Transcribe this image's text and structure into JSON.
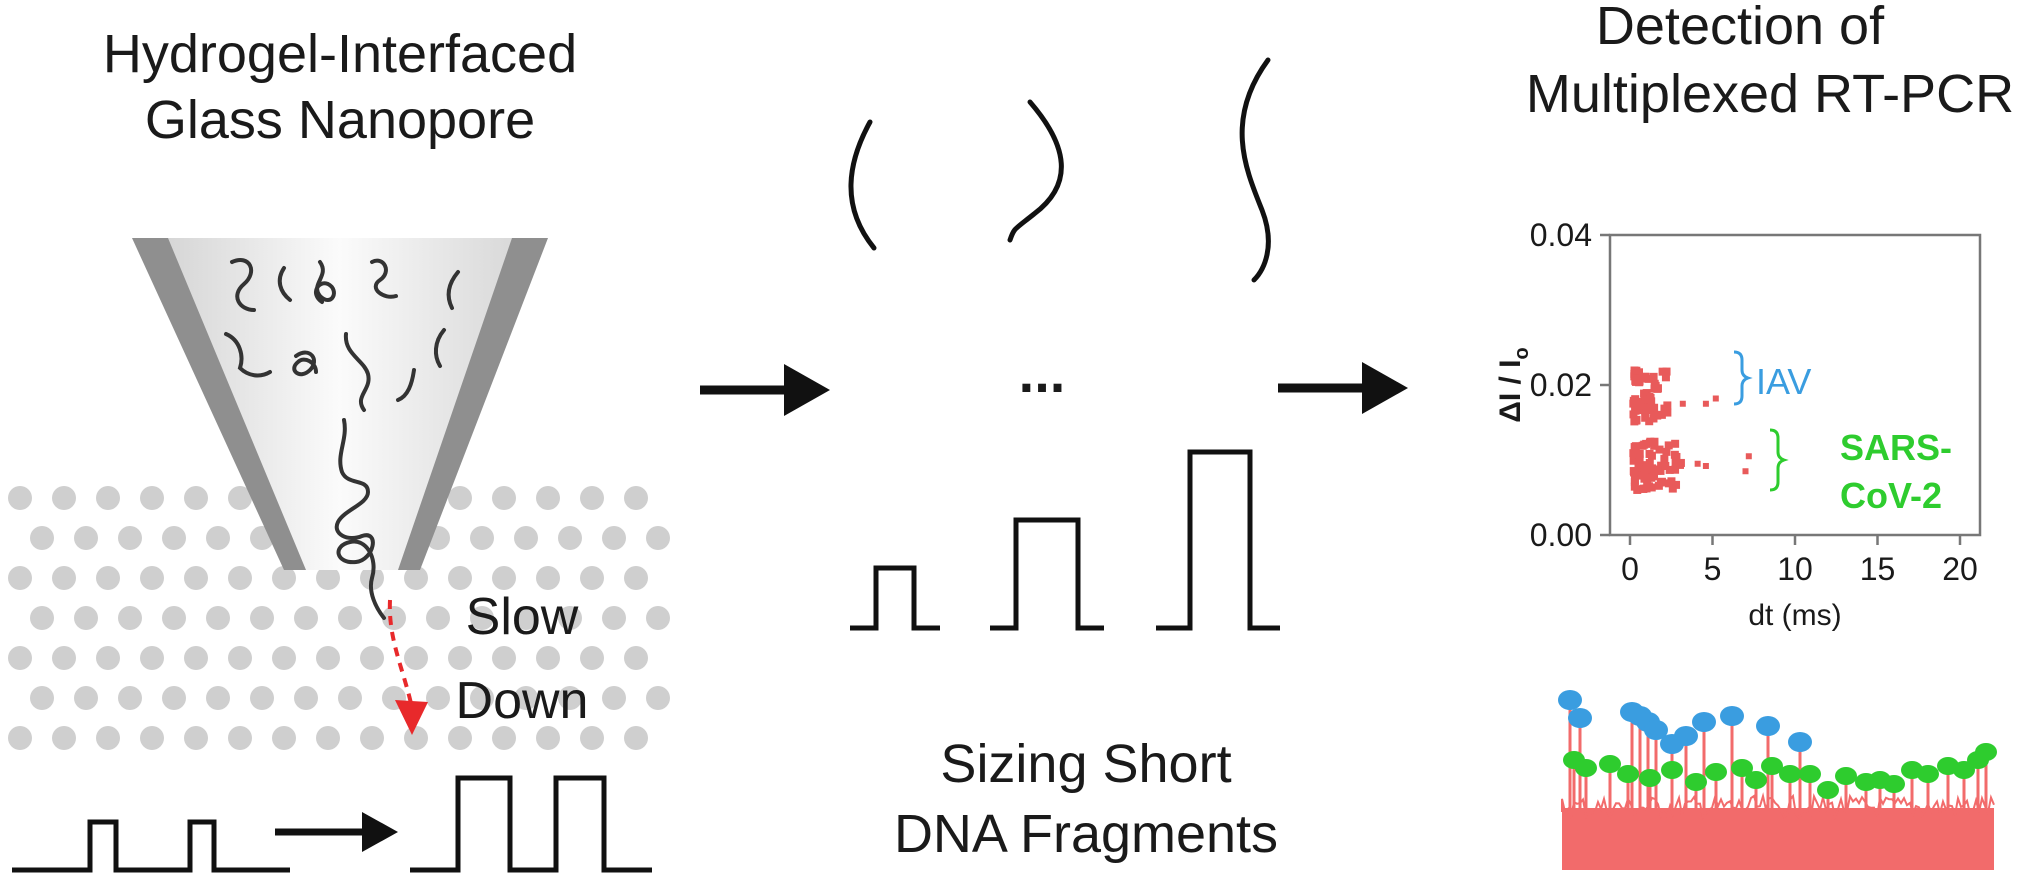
{
  "panels": {
    "left": {
      "title_line1": "Hydrogel-Interfaced",
      "title_line2": "Glass Nanopore",
      "annotation_line1": "Slow",
      "annotation_line2": "Down"
    },
    "middle": {
      "ellipsis": "...",
      "caption_line1": "Sizing Short",
      "caption_line2": "DNA Fragments"
    },
    "right": {
      "title_line1": "Detection of",
      "title_line2": "Multiplexed  RT-PCR"
    }
  },
  "colors": {
    "ink": "#111111",
    "red": "#e8292b",
    "iav": "#3a9de0",
    "sars": "#2ecc2e",
    "trace": "#f26b6b",
    "pore_wall": "#9a9a9a",
    "hydrogel_dot": "#cfcfcf"
  },
  "chart_data": {
    "type": "scatter",
    "xlabel": "dt (ms)",
    "ylabel": "ΔI / I",
    "ylabel_subscript": "o",
    "xlim": [
      0,
      20
    ],
    "ylim": [
      0,
      0.04
    ],
    "x_ticks": [
      "0",
      "5",
      "10",
      "15",
      "20"
    ],
    "y_ticks": [
      "0.04",
      "0.02",
      "0.00"
    ],
    "x_tick_values": [
      0,
      5,
      10,
      15,
      20
    ],
    "y_tick_values": [
      0.04,
      0.02,
      0
    ],
    "point_color": "#e85a5a",
    "annotations": [
      {
        "label": "IAV",
        "color": "#3a9de0",
        "y": 0.0185
      },
      {
        "label": "SARS-\nCoV-2",
        "label_line1": "SARS-",
        "label_line2": "CoV-2",
        "color": "#2ecc2e",
        "y": 0.0095
      }
    ],
    "clusters": [
      {
        "name": "IAV",
        "x_range": [
          0.2,
          2.4
        ],
        "y_range": [
          0.015,
          0.022
        ],
        "count": 60,
        "outliers": [
          [
            3.2,
            0.0175
          ],
          [
            4.6,
            0.0175
          ],
          [
            5.2,
            0.0182
          ]
        ]
      },
      {
        "name": "SARS-CoV-2",
        "x_range": [
          0.2,
          3.2
        ],
        "y_range": [
          0.006,
          0.0125
        ],
        "count": 70,
        "outliers": [
          [
            4.1,
            0.0095
          ],
          [
            4.6,
            0.0092
          ],
          [
            7.0,
            0.0085
          ],
          [
            7.2,
            0.0105
          ]
        ]
      }
    ]
  }
}
